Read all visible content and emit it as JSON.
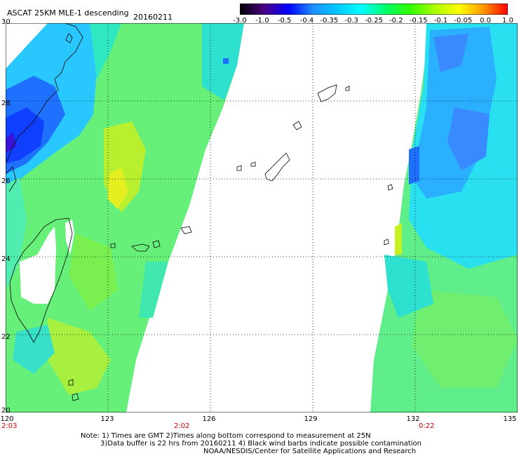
{
  "header": {
    "title": "ASCAT 25KM MLE-1 descending",
    "date": "20160211"
  },
  "colorbar": {
    "labels": [
      "-3.0",
      "-1.0",
      "-0.5",
      "-0.4",
      "-0.35",
      "-0.3",
      "-0.25",
      "-0.2",
      "-0.15",
      "-0.1",
      "-0.05",
      "0.0",
      "1.0"
    ],
    "colors": [
      "#000000",
      "#4b0082",
      "#0000ff",
      "#1e90ff",
      "#00c8ff",
      "#00ffff",
      "#00ff66",
      "#33ff00",
      "#aaff00",
      "#ffff00",
      "#ff9900",
      "#ff0000"
    ]
  },
  "axes": {
    "lat_labels": [
      "30",
      "28",
      "26",
      "24",
      "22",
      "20"
    ],
    "lon_labels": [
      "120",
      "123",
      "126",
      "129",
      "132",
      "135"
    ],
    "lat_range": [
      20,
      30
    ],
    "lon_range": [
      120,
      135
    ],
    "grid": true
  },
  "pass_times": [
    "2:03",
    "2:02",
    "0:22"
  ],
  "notes": [
    "Note: 1) Times are GMT 2)Times along bottom correspond to measurement at 25N",
    "3)Data buffer is 22 hrs from 20160211 4) Black wind barbs indicate possible contamination",
    "NOAA/NESDIS/Center for Satellite Applications and Research"
  ]
}
